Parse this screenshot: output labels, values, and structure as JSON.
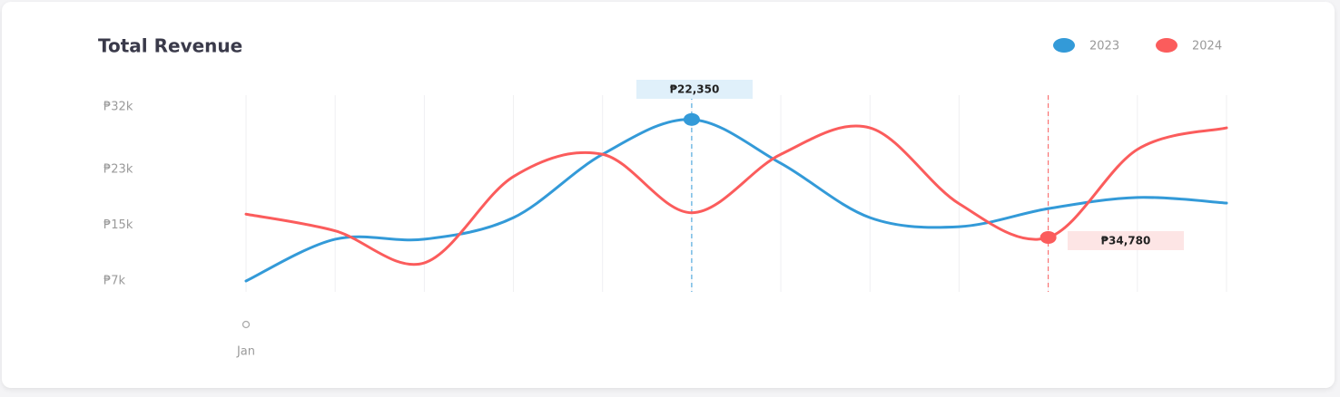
{
  "chart_data": {
    "type": "line",
    "title": "Total Revenue",
    "categories": [
      "Jan",
      null,
      null,
      null,
      null,
      null,
      null,
      null,
      null,
      null,
      null,
      null
    ],
    "series": [
      {
        "name": "2023",
        "color": "#339ad8",
        "values": [
          7000,
          13000,
          13000,
          16100,
          25200,
          30200,
          23900,
          16100,
          14800,
          17400,
          19000,
          18200
        ]
      },
      {
        "name": "2024",
        "color": "#fb5c5c",
        "values": [
          16600,
          14200,
          9600,
          22000,
          25200,
          16800,
          25200,
          29000,
          18100,
          13250,
          25900,
          29000
        ]
      }
    ],
    "ylim": [
      7000,
      32000
    ],
    "yticks": [
      {
        "value": 32000,
        "label": "₱32k"
      },
      {
        "value": 23000,
        "label": "₱23k"
      },
      {
        "value": 15000,
        "label": "₱15k"
      },
      {
        "value": 7000,
        "label": "₱7k"
      }
    ],
    "annotations": [
      "₱22,350",
      "₱34,780"
    ],
    "legend": "top-right"
  }
}
